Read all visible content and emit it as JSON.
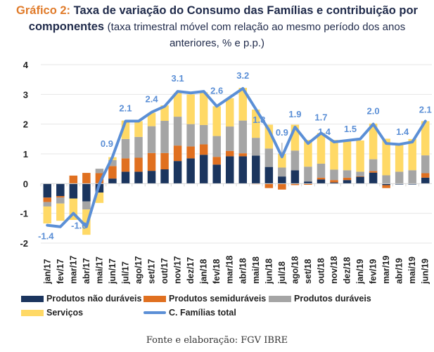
{
  "header": {
    "lead": "Gráfico 2:",
    "title_bold_1": "Taxa de variação do Consumo das Famílias e contribuição por",
    "title_bold_2": "componentes",
    "title_rest": "(taxa trimestral móvel com relação ao mesmo período dos anos anteriores, % e p.p.)"
  },
  "source": "Fonte e elaboração: FGV IBRE",
  "chart_data": {
    "type": "bar",
    "stacked": true,
    "title": "Taxa de variação do Consumo das Famílias e contribuição por componentes",
    "xlabel": "",
    "ylabel": "",
    "ylim": [
      -2,
      4
    ],
    "yticks": [
      "4",
      "3",
      "2",
      "1",
      "0",
      "-1",
      "-2"
    ],
    "ytick_values": [
      4,
      3,
      2,
      1,
      0,
      -1,
      -2
    ],
    "grid": true,
    "legend_position": "bottom",
    "categories": [
      "jan/17",
      "fev/17",
      "mar/17",
      "abr/17",
      "mai/17",
      "jun/17",
      "jul/17",
      "ago/17",
      "set/17",
      "out/17",
      "nov/17",
      "dez/17",
      "jan/18",
      "fev/18",
      "mar/18",
      "abr/18",
      "mai/18",
      "jun/18",
      "jul/18",
      "ago/18",
      "set/18",
      "out/18",
      "nov/18",
      "dez/18",
      "jan/19",
      "fev/19",
      "mar/19",
      "abr/19",
      "mai/19",
      "jun/19"
    ],
    "series": [
      {
        "name": "Produtos não duráveis",
        "type": "bar",
        "color": "#1b355e",
        "values": [
          -0.47,
          -0.42,
          -0.5,
          -0.6,
          -0.3,
          0.17,
          0.4,
          0.4,
          0.43,
          0.48,
          0.76,
          0.85,
          0.97,
          0.64,
          0.92,
          0.92,
          0.94,
          0.56,
          0.24,
          0.45,
          0.07,
          0.14,
          0.04,
          0.12,
          0.23,
          0.37,
          -0.05,
          -0.03,
          -0.03,
          0.2
        ]
      },
      {
        "name": "Produtos semiduráveis",
        "type": "bar",
        "color": "#e07020",
        "values": [
          -0.15,
          -0.05,
          0.27,
          0.36,
          0.35,
          0.42,
          0.45,
          0.47,
          0.6,
          0.55,
          0.52,
          0.4,
          0.35,
          0.26,
          0.18,
          0.1,
          -0.02,
          -0.15,
          -0.2,
          -0.05,
          -0.04,
          0.06,
          0.08,
          0.08,
          0.02,
          0.05,
          -0.1,
          0.0,
          0.0,
          0.15
        ]
      },
      {
        "name": "Produtos duráveis",
        "type": "bar",
        "color": "#a5a5a5",
        "values": [
          -0.15,
          -0.2,
          0.0,
          -0.27,
          0.15,
          0.2,
          0.65,
          0.7,
          0.9,
          1.08,
          0.97,
          0.75,
          0.65,
          0.7,
          0.82,
          1.1,
          0.6,
          0.62,
          0.3,
          0.66,
          0.5,
          0.47,
          0.35,
          0.25,
          0.15,
          0.4,
          0.28,
          0.4,
          0.45,
          0.6
        ]
      },
      {
        "name": "Serviços",
        "type": "bar",
        "color": "#ffd966",
        "values": [
          -0.57,
          -0.58,
          -0.72,
          -0.85,
          -0.35,
          0.1,
          0.62,
          0.53,
          0.45,
          0.52,
          0.8,
          1.0,
          1.1,
          1.0,
          0.95,
          1.1,
          0.95,
          0.8,
          0.46,
          0.87,
          0.9,
          1.03,
          1.0,
          1.0,
          1.05,
          1.2,
          1.23,
          0.95,
          1.05,
          1.15
        ]
      },
      {
        "name": "C. Famílias total",
        "type": "line",
        "color": "#5b8fd6",
        "values": [
          -1.4,
          -1.45,
          -1.0,
          -1.45,
          0.0,
          0.9,
          2.1,
          2.1,
          2.4,
          2.6,
          3.1,
          3.05,
          3.1,
          2.6,
          2.9,
          3.2,
          2.5,
          1.8,
          0.9,
          1.9,
          1.35,
          1.7,
          1.4,
          1.45,
          1.5,
          2.0,
          1.35,
          1.32,
          1.4,
          2.1
        ]
      }
    ],
    "data_labels": [
      {
        "category": "jan/17",
        "text": "-1.4",
        "value": -1.4
      },
      {
        "category": "mar/17",
        "text": "-1.0",
        "value": -1.0
      },
      {
        "category": "jun/17",
        "text": "0.9",
        "value": 0.9
      },
      {
        "category": "jul/17",
        "text": "2.1",
        "value": 2.1
      },
      {
        "category": "set/17",
        "text": "2.4",
        "value": 2.4
      },
      {
        "category": "nov/17",
        "text": "3.1",
        "value": 3.1
      },
      {
        "category": "fev/18",
        "text": "2.6",
        "value": 2.6
      },
      {
        "category": "abr/18",
        "text": "3.2",
        "value": 3.2
      },
      {
        "category": "jun/18",
        "text": "1.8",
        "value": 1.8
      },
      {
        "category": "jul/18",
        "text": "0.9",
        "value": 0.9
      },
      {
        "category": "ago/18",
        "text": "1.9",
        "value": 1.9
      },
      {
        "category": "out/18",
        "text": "1.7",
        "value": 1.7
      },
      {
        "category": "nov/18",
        "text": "1.4",
        "value": 1.4
      },
      {
        "category": "jan/19",
        "text": "1.5",
        "value": 1.5
      },
      {
        "category": "fev/19",
        "text": "2.0",
        "value": 2.0
      },
      {
        "category": "mai/19",
        "text": "1.4",
        "value": 1.4
      },
      {
        "category": "jun/19",
        "text": "2.1",
        "value": 2.1
      }
    ]
  },
  "legend": [
    {
      "label": "Produtos não duráveis",
      "color": "#1b355e",
      "kind": "bar"
    },
    {
      "label": "Produtos semiduráveis",
      "color": "#e07020",
      "kind": "bar"
    },
    {
      "label": "Produtos duráveis",
      "color": "#a5a5a5",
      "kind": "bar"
    },
    {
      "label": "Serviços",
      "color": "#ffd966",
      "kind": "bar"
    },
    {
      "label": "C. Famílias total",
      "color": "#5b8fd6",
      "kind": "line"
    }
  ]
}
